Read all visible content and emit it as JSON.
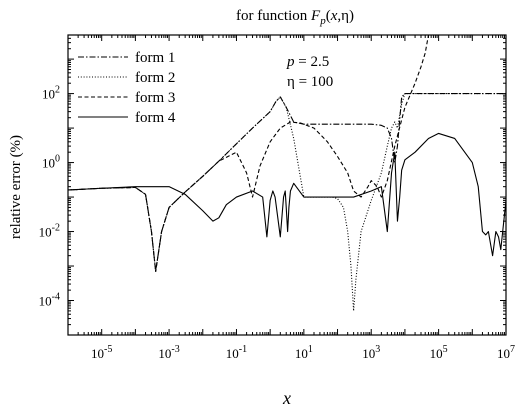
{
  "chart_data": {
    "type": "line",
    "title": "for function F_p(x,η)",
    "title_parts": {
      "prefix": "for function ",
      "func": "F",
      "sub": "p",
      "args_open": "(",
      "args_var": "x",
      "args_rest": ",η)"
    },
    "xlabel": "x",
    "ylabel": "relative error (%)",
    "xscale": "log",
    "yscale": "log",
    "xlim": [
      1e-06,
      10000000
    ],
    "ylim": [
      1e-05,
      5000
    ],
    "x_ticks": [
      {
        "value": 1e-05,
        "base": "10",
        "exp": "-5"
      },
      {
        "value": 0.001,
        "base": "10",
        "exp": "-3"
      },
      {
        "value": 0.1,
        "base": "10",
        "exp": "-1"
      },
      {
        "value": 10,
        "base": "10",
        "exp": "1"
      },
      {
        "value": 1000,
        "base": "10",
        "exp": "3"
      },
      {
        "value": 100000,
        "base": "10",
        "exp": "5"
      },
      {
        "value": 10000000,
        "base": "10",
        "exp": "7"
      }
    ],
    "y_ticks": [
      {
        "value": 0.0001,
        "base": "10",
        "exp": "-4"
      },
      {
        "value": 0.01,
        "base": "10",
        "exp": "-2"
      },
      {
        "value": 1,
        "base": "10",
        "exp": "0"
      },
      {
        "value": 100,
        "base": "10",
        "exp": "2"
      }
    ],
    "annotations": [
      {
        "var": "p",
        "rest": " = 2.5"
      },
      {
        "var": "",
        "rest": "η = 100"
      }
    ],
    "legend_position": "top-left",
    "series": [
      {
        "name": "form 1",
        "style": "dash-dot",
        "x": [
          1e-06,
          1e-05,
          0.0001,
          0.0002,
          0.0003,
          0.0004,
          0.0006,
          0.001,
          0.003,
          0.01,
          0.03,
          0.1,
          0.3,
          1,
          1.5,
          2,
          3,
          5,
          10,
          30,
          100,
          300,
          1000,
          2000,
          3000,
          4000,
          5000,
          6000,
          8000,
          10000,
          100000,
          1000000,
          10000000
        ],
        "y": [
          0.16,
          0.18,
          0.19,
          0.12,
          0.01,
          0.0007,
          0.01,
          0.05,
          0.14,
          0.4,
          1.1,
          3.5,
          10,
          30,
          60,
          80,
          40,
          15,
          13,
          13,
          13,
          13,
          13,
          12,
          10,
          5,
          1,
          3,
          80,
          100,
          100,
          100,
          100
        ]
      },
      {
        "name": "form 2",
        "style": "dotted",
        "x": [
          1e-06,
          1e-05,
          0.0001,
          0.0002,
          0.0003,
          0.0004,
          0.0006,
          0.001,
          0.003,
          0.01,
          0.03,
          0.1,
          0.3,
          1,
          1.5,
          2,
          3,
          5,
          10,
          30,
          70,
          100,
          150,
          200,
          250,
          300,
          350,
          500,
          1000,
          2000,
          3000,
          4000,
          5000,
          6000,
          8000,
          10000,
          100000,
          1000000,
          10000000
        ],
        "y": [
          0.16,
          0.18,
          0.19,
          0.12,
          0.01,
          0.0007,
          0.01,
          0.05,
          0.14,
          0.4,
          1.1,
          3.5,
          10,
          30,
          60,
          80,
          40,
          5,
          0.1,
          0.1,
          0.1,
          0.09,
          0.05,
          0.01,
          0.001,
          5e-05,
          0.0004,
          0.01,
          0.08,
          0.5,
          3,
          10,
          15,
          10,
          50,
          100,
          100,
          100,
          100
        ]
      },
      {
        "name": "form 3",
        "style": "dashed",
        "x": [
          1e-06,
          1e-05,
          0.0001,
          0.0002,
          0.0003,
          0.0004,
          0.0006,
          0.001,
          0.003,
          0.01,
          0.03,
          0.1,
          0.2,
          0.3,
          0.5,
          1,
          2,
          4,
          8,
          20,
          50,
          100,
          200,
          300,
          500,
          800,
          1000,
          1500,
          2000,
          3000,
          5000,
          10000,
          20000,
          30000,
          40000,
          50000
        ],
        "y": [
          0.16,
          0.18,
          0.19,
          0.12,
          0.01,
          0.0007,
          0.01,
          0.05,
          0.14,
          0.4,
          1.1,
          2,
          0.5,
          0.1,
          0.8,
          4,
          10,
          15,
          14,
          10,
          4,
          1.5,
          0.5,
          0.15,
          0.1,
          0.2,
          0.3,
          0.2,
          0.1,
          0.3,
          3,
          40,
          200,
          600,
          1500,
          5000
        ]
      },
      {
        "name": "form 4",
        "style": "solid",
        "x": [
          1e-06,
          1e-05,
          0.0001,
          0.001,
          0.003,
          0.01,
          0.02,
          0.03,
          0.05,
          0.1,
          0.3,
          0.6,
          0.8,
          1,
          1.2,
          1.4,
          2,
          2.5,
          2.8,
          3,
          3.3,
          3.6,
          4,
          5,
          10,
          50,
          100,
          300,
          1000,
          2000,
          3000,
          4000,
          5000,
          6000,
          7000,
          8000,
          10000,
          20000,
          50000,
          100000,
          300000,
          1000000,
          1500000,
          2000000,
          2500000,
          3000000,
          4000000,
          5000000,
          6000000,
          7000000,
          10000000
        ],
        "y": [
          0.16,
          0.18,
          0.2,
          0.2,
          0.12,
          0.04,
          0.02,
          0.025,
          0.06,
          0.1,
          0.15,
          0.1,
          0.007,
          0.08,
          0.15,
          0.1,
          0.007,
          0.1,
          0.15,
          0.05,
          0.01,
          0.05,
          0.15,
          0.25,
          0.1,
          0.1,
          0.1,
          0.1,
          0.15,
          0.2,
          0.01,
          0.5,
          2,
          0.02,
          0.1,
          0.6,
          1.2,
          2,
          5,
          7,
          5,
          1,
          0.2,
          0.01,
          0.008,
          0.01,
          0.002,
          0.01,
          0.007,
          0.003,
          0.08
        ]
      }
    ]
  }
}
